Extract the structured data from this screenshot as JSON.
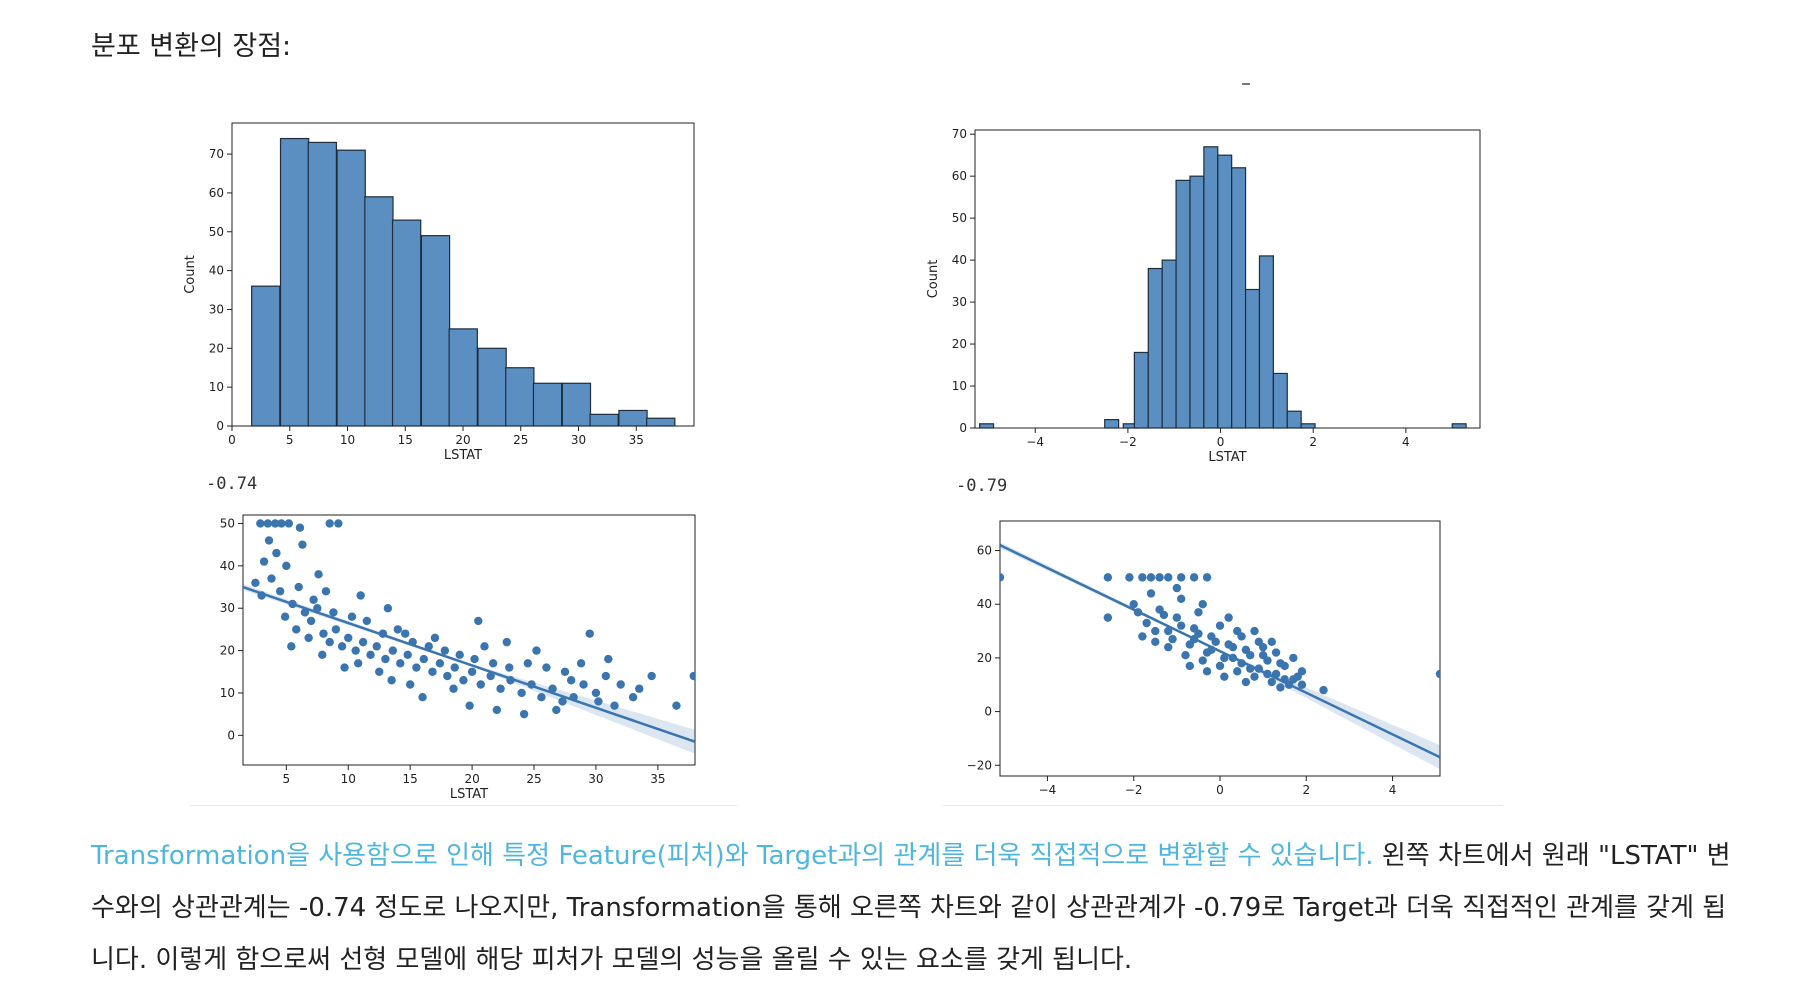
{
  "heading": "분포 변환의 장점:",
  "charts": {
    "hist_left": {
      "ylabel": "Count",
      "xlabel": "LSTAT"
    },
    "hist_right": {
      "ylabel": "Count",
      "xlabel": "LSTAT"
    },
    "scatter_left": {
      "xlabel": "LSTAT",
      "corr": "-0.74"
    },
    "scatter_right": {
      "corr": "-0.79"
    }
  },
  "paragraph": {
    "highlight": "Transformation을 사용함으로 인해 특정 Feature(피처)와 Target과의 관계를 더욱 직접적으로 변환할 수 있습니다.",
    "rest": " 왼쪽 차트에서 원래 \"LSTAT\" 변수와의 상관관계는 -0.74 정도로 나오지만, Transformation을 통해 오른쪽 차트와 같이 상관관계가 -0.79로 Target과 더욱 직접적인 관계를 갖게 됩니다. 이렇게 함으로써 선형 모델에 해당 피처가 모델의 성능을 올릴 수 있는 요소를 갖게 됩니다."
  },
  "colors": {
    "bar_fill": "#5b8ec1",
    "bar_edge": "#1f2d3d",
    "point": "#3a75b0",
    "line": "#3a75b0",
    "highlight_text": "#4fb6e0"
  },
  "chart_data": [
    {
      "type": "bar",
      "ylabel": "Count",
      "xlabel": "LSTAT",
      "x": [
        1.7,
        4.2,
        6.6,
        9.1,
        11.5,
        13.9,
        16.4,
        18.8,
        21.3,
        23.7,
        26.1,
        28.6,
        31.0,
        33.5,
        35.9
      ],
      "bin_width": 2.44,
      "values": [
        36,
        74,
        73,
        71,
        59,
        53,
        49,
        25,
        20,
        15,
        11,
        11,
        3,
        4,
        2
      ],
      "xlim": [
        0,
        40
      ],
      "ylim": [
        0,
        78
      ],
      "xticks": [
        0,
        5,
        10,
        15,
        20,
        25,
        30,
        35
      ],
      "yticks": [
        0,
        10,
        20,
        30,
        40,
        50,
        60,
        70
      ]
    },
    {
      "type": "bar",
      "ylabel": "Count",
      "xlabel": "LSTAT",
      "x": [
        -5.2,
        -2.5,
        -2.1,
        -1.86,
        -1.56,
        -1.26,
        -0.96,
        -0.66,
        -0.36,
        -0.06,
        0.24,
        0.54,
        0.84,
        1.14,
        1.44,
        1.74,
        2.04,
        5.0
      ],
      "bin_width": 0.3,
      "values": [
        1,
        2,
        1,
        18,
        38,
        40,
        59,
        60,
        67,
        65,
        62,
        33,
        41,
        13,
        4,
        1,
        0,
        1
      ],
      "xlim": [
        -5.3,
        5.6
      ],
      "ylim": [
        0,
        71
      ],
      "xticks": [
        -4,
        -2,
        0,
        2,
        4
      ],
      "yticks": [
        0,
        10,
        20,
        30,
        40,
        50,
        60,
        70
      ]
    },
    {
      "type": "scatter",
      "xlabel": "LSTAT",
      "title": "-0.74",
      "xlim": [
        1.5,
        38
      ],
      "ylim": [
        -7,
        52
      ],
      "xticks": [
        5,
        10,
        15,
        20,
        25,
        30,
        35
      ],
      "yticks": [
        0,
        10,
        20,
        30,
        40,
        50
      ],
      "fit_line": {
        "x": [
          1.5,
          38
        ],
        "y": [
          35,
          -1.5
        ]
      },
      "points": [
        [
          2.9,
          50
        ],
        [
          3.5,
          50
        ],
        [
          4.1,
          50
        ],
        [
          4.6,
          50
        ],
        [
          5.2,
          50
        ],
        [
          6.1,
          49
        ],
        [
          8.5,
          50
        ],
        [
          9.2,
          50
        ],
        [
          3.2,
          41
        ],
        [
          4.2,
          43
        ],
        [
          5.0,
          40
        ],
        [
          3.8,
          37
        ],
        [
          2.5,
          36
        ],
        [
          3.0,
          33
        ],
        [
          4.5,
          34
        ],
        [
          5.5,
          31
        ],
        [
          6.0,
          35
        ],
        [
          4.9,
          28
        ],
        [
          6.5,
          29
        ],
        [
          7.0,
          27
        ],
        [
          7.5,
          30
        ],
        [
          5.8,
          25
        ],
        [
          6.8,
          23
        ],
        [
          8.0,
          24
        ],
        [
          8.5,
          22
        ],
        [
          9.0,
          25
        ],
        [
          9.5,
          21
        ],
        [
          10.0,
          23
        ],
        [
          10.6,
          20
        ],
        [
          11.2,
          22
        ],
        [
          11.8,
          19
        ],
        [
          12.3,
          21
        ],
        [
          13.0,
          18
        ],
        [
          13.6,
          20
        ],
        [
          14.2,
          17
        ],
        [
          14.8,
          19
        ],
        [
          15.5,
          16
        ],
        [
          16.1,
          18
        ],
        [
          16.8,
          15
        ],
        [
          17.4,
          17
        ],
        [
          18.0,
          14
        ],
        [
          18.6,
          16
        ],
        [
          19.3,
          13
        ],
        [
          20.0,
          15
        ],
        [
          20.7,
          12
        ],
        [
          21.5,
          14
        ],
        [
          22.3,
          11
        ],
        [
          23.1,
          13
        ],
        [
          24.0,
          10
        ],
        [
          24.8,
          12
        ],
        [
          25.6,
          9
        ],
        [
          26.5,
          11
        ],
        [
          27.3,
          8
        ],
        [
          28.2,
          9
        ],
        [
          29.0,
          12
        ],
        [
          30.2,
          8
        ],
        [
          31.5,
          7
        ],
        [
          33.0,
          9
        ],
        [
          34.5,
          14
        ],
        [
          36.5,
          7
        ],
        [
          37.9,
          14
        ],
        [
          7.2,
          32
        ],
        [
          8.8,
          29
        ],
        [
          10.3,
          28
        ],
        [
          11.5,
          27
        ],
        [
          12.8,
          24
        ],
        [
          14.0,
          25
        ],
        [
          15.2,
          22
        ],
        [
          16.5,
          21
        ],
        [
          17.8,
          20
        ],
        [
          19.0,
          19
        ],
        [
          20.2,
          18
        ],
        [
          21.7,
          17
        ],
        [
          23.0,
          16
        ],
        [
          24.5,
          17
        ],
        [
          26.0,
          16
        ],
        [
          27.5,
          15
        ],
        [
          28.8,
          17
        ],
        [
          29.5,
          24
        ],
        [
          30.8,
          14
        ],
        [
          32.0,
          12
        ],
        [
          33.5,
          11
        ],
        [
          19.8,
          7
        ],
        [
          22.0,
          6
        ],
        [
          24.2,
          5
        ],
        [
          16.0,
          9
        ],
        [
          12.5,
          15
        ],
        [
          10.8,
          17
        ],
        [
          9.7,
          16
        ],
        [
          15.0,
          12
        ],
        [
          5.4,
          21
        ],
        [
          7.9,
          19
        ],
        [
          13.5,
          13
        ],
        [
          18.5,
          11
        ],
        [
          26.8,
          6
        ],
        [
          30.0,
          10
        ],
        [
          6.3,
          45
        ],
        [
          7.6,
          38
        ],
        [
          11.0,
          33
        ],
        [
          13.2,
          30
        ],
        [
          20.5,
          27
        ],
        [
          22.8,
          22
        ],
        [
          25.2,
          20
        ],
        [
          3.6,
          46
        ],
        [
          8.2,
          34
        ],
        [
          14.6,
          24
        ],
        [
          17.0,
          23
        ],
        [
          21.0,
          21
        ],
        [
          28.0,
          13
        ],
        [
          31.0,
          18
        ]
      ]
    },
    {
      "type": "scatter",
      "title": "-0.79",
      "xlim": [
        -5.1,
        5.1
      ],
      "ylim": [
        -24,
        71
      ],
      "xticks": [
        -4,
        -2,
        0,
        2,
        4
      ],
      "yticks": [
        -20,
        0,
        20,
        40,
        60
      ],
      "fit_line": {
        "x": [
          -5.1,
          5.1
        ],
        "y": [
          62,
          -17
        ]
      },
      "points": [
        [
          -5.1,
          50
        ],
        [
          5.1,
          14
        ],
        [
          -2.6,
          50
        ],
        [
          -2.1,
          50
        ],
        [
          -1.8,
          50
        ],
        [
          -1.6,
          50
        ],
        [
          -1.4,
          50
        ],
        [
          -1.2,
          50
        ],
        [
          -0.9,
          50
        ],
        [
          -0.6,
          50
        ],
        [
          -0.3,
          50
        ],
        [
          -2.6,
          35
        ],
        [
          -2.0,
          40
        ],
        [
          -1.7,
          33
        ],
        [
          -1.5,
          30
        ],
        [
          -1.3,
          36
        ],
        [
          -1.1,
          27
        ],
        [
          -0.9,
          32
        ],
        [
          -0.7,
          25
        ],
        [
          -0.5,
          29
        ],
        [
          -0.3,
          22
        ],
        [
          -0.1,
          26
        ],
        [
          0.1,
          20
        ],
        [
          0.3,
          24
        ],
        [
          0.5,
          18
        ],
        [
          0.7,
          21
        ],
        [
          0.9,
          16
        ],
        [
          1.1,
          19
        ],
        [
          1.3,
          14
        ],
        [
          1.5,
          17
        ],
        [
          1.7,
          12
        ],
        [
          1.9,
          15
        ],
        [
          2.4,
          8
        ],
        [
          -1.8,
          28
        ],
        [
          -1.2,
          24
        ],
        [
          -0.8,
          21
        ],
        [
          -0.4,
          19
        ],
        [
          0.0,
          17
        ],
        [
          0.4,
          15
        ],
        [
          0.8,
          13
        ],
        [
          1.2,
          11
        ],
        [
          1.6,
          10
        ],
        [
          -1.4,
          38
        ],
        [
          -1.0,
          35
        ],
        [
          -0.6,
          31
        ],
        [
          -0.2,
          28
        ],
        [
          0.2,
          25
        ],
        [
          0.6,
          23
        ],
        [
          1.0,
          21
        ],
        [
          1.4,
          18
        ],
        [
          1.8,
          13
        ],
        [
          -0.9,
          42
        ],
        [
          -0.5,
          37
        ],
        [
          0.0,
          32
        ],
        [
          0.5,
          28
        ],
        [
          1.0,
          24
        ],
        [
          -1.6,
          44
        ],
        [
          -1.0,
          46
        ],
        [
          -0.4,
          40
        ],
        [
          0.2,
          35
        ],
        [
          0.8,
          30
        ],
        [
          1.2,
          26
        ],
        [
          -1.9,
          37
        ],
        [
          -1.5,
          26
        ],
        [
          -0.2,
          23
        ],
        [
          0.3,
          20
        ],
        [
          0.7,
          16
        ],
        [
          1.1,
          14
        ],
        [
          1.5,
          12
        ],
        [
          -0.7,
          17
        ],
        [
          -0.3,
          15
        ],
        [
          0.1,
          13
        ],
        [
          0.6,
          11
        ],
        [
          1.4,
          9
        ],
        [
          1.9,
          10
        ],
        [
          -1.2,
          30
        ],
        [
          -0.6,
          27
        ],
        [
          0.4,
          30
        ],
        [
          0.9,
          26
        ],
        [
          1.3,
          22
        ],
        [
          1.7,
          20
        ]
      ]
    }
  ]
}
